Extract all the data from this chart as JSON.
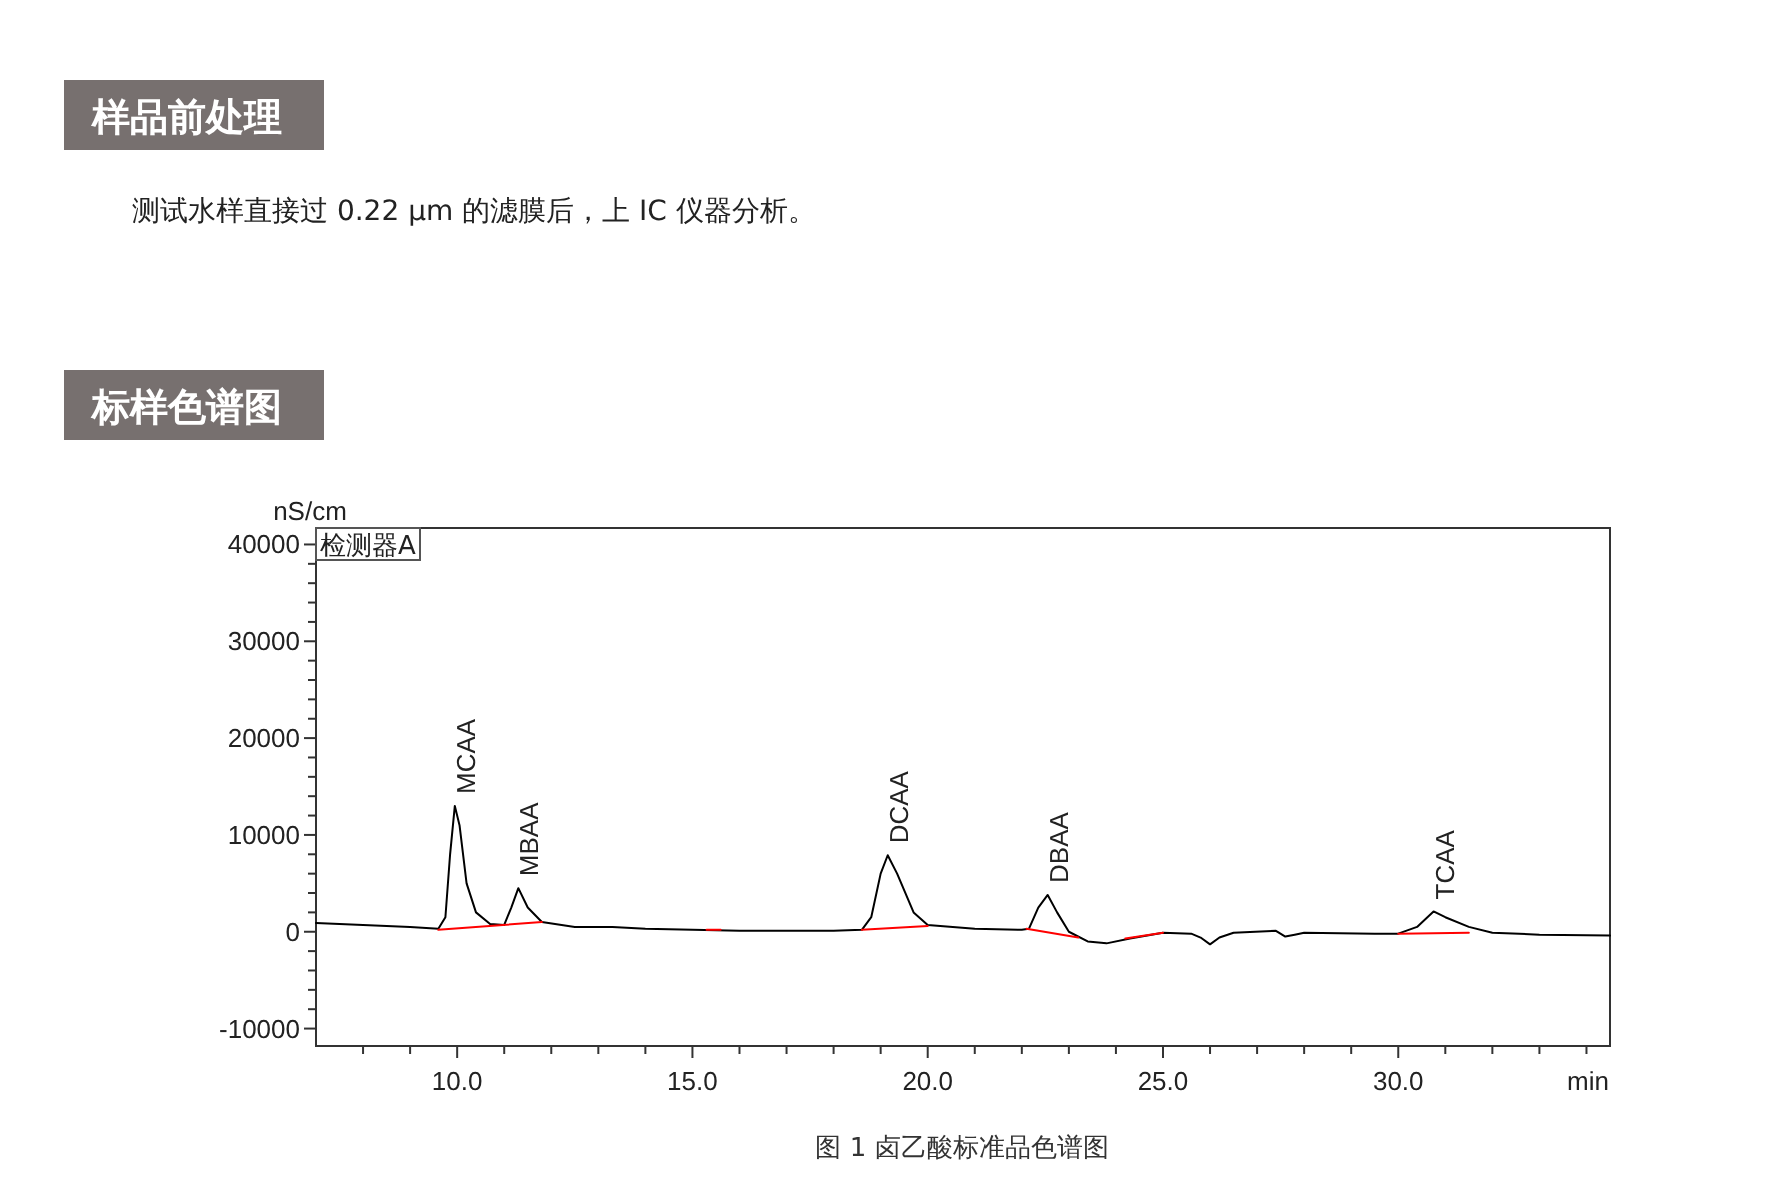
{
  "chart_data": {
    "type": "line",
    "title": "标样色谱图",
    "xlabel": "min",
    "ylabel": "nS/cm",
    "annotations": [
      "样品前处理",
      "测试水样直接过 0.22 µm 的滤膜后，上 IC 仪器分析。",
      "检测器A",
      "图 1 卤乙酸标准品色谱图",
      {
        "text": "MCAA",
        "x": 9.95,
        "y": 13000
      },
      {
        "text": "MBAA",
        "x": 11.3,
        "y": 4500
      },
      {
        "text": "DCAA",
        "x": 19.15,
        "y": 7900
      },
      {
        "text": "DBAA",
        "x": 22.55,
        "y": 3800
      },
      {
        "text": "TCAA",
        "x": 30.75,
        "y": 2100
      }
    ],
    "xlim": [
      7,
      34.5
    ],
    "ylim": [
      -11800,
      41700
    ],
    "xticks": [
      {
        "value": 8,
        "label": null
      },
      {
        "value": 9,
        "label": null
      },
      {
        "value": 10,
        "label": "10.0"
      },
      {
        "value": 11,
        "label": null
      },
      {
        "value": 12,
        "label": null
      },
      {
        "value": 13,
        "label": null
      },
      {
        "value": 14,
        "label": null
      },
      {
        "value": 15,
        "label": "15.0"
      },
      {
        "value": 16,
        "label": null
      },
      {
        "value": 17,
        "label": null
      },
      {
        "value": 18,
        "label": null
      },
      {
        "value": 19,
        "label": null
      },
      {
        "value": 20,
        "label": "20.0"
      },
      {
        "value": 21,
        "label": null
      },
      {
        "value": 22,
        "label": null
      },
      {
        "value": 23,
        "label": null
      },
      {
        "value": 24,
        "label": null
      },
      {
        "value": 25,
        "label": "25.0"
      },
      {
        "value": 26,
        "label": null
      },
      {
        "value": 27,
        "label": null
      },
      {
        "value": 28,
        "label": null
      },
      {
        "value": 29,
        "label": null
      },
      {
        "value": 30,
        "label": "30.0"
      },
      {
        "value": 31,
        "label": null
      },
      {
        "value": 32,
        "label": null
      },
      {
        "value": 33,
        "label": null
      },
      {
        "value": 34,
        "label": null
      }
    ],
    "yticks": [
      -10000,
      {
        "value": -8000,
        "label": null
      },
      {
        "value": -6000,
        "label": null
      },
      {
        "value": -4000,
        "label": null
      },
      {
        "value": -2000,
        "label": null
      },
      0,
      {
        "value": 2000,
        "label": null
      },
      {
        "value": 4000,
        "label": null
      },
      {
        "value": 6000,
        "label": null
      },
      {
        "value": 8000,
        "label": null
      },
      10000,
      {
        "value": 12000,
        "label": null
      },
      {
        "value": 14000,
        "label": null
      },
      {
        "value": 16000,
        "label": null
      },
      {
        "value": 18000,
        "label": null
      },
      20000,
      {
        "value": 22000,
        "label": null
      },
      {
        "value": 24000,
        "label": null
      },
      {
        "value": 26000,
        "label": null
      },
      {
        "value": 28000,
        "label": null
      },
      30000,
      {
        "value": 32000,
        "label": null
      },
      {
        "value": 34000,
        "label": null
      },
      {
        "value": 36000,
        "label": null
      },
      {
        "value": 38000,
        "label": null
      },
      40000
    ],
    "marker": "none",
    "series": [
      {
        "color": "#000000",
        "x": [
          7.0,
          8.0,
          9.0,
          9.6,
          9.75,
          9.85,
          9.95,
          10.05,
          10.2,
          10.4,
          10.7,
          11.0,
          11.15,
          11.3,
          11.5,
          11.8,
          12.5,
          13.3,
          14.0,
          15.0,
          16.0,
          17.0,
          18.0,
          18.6,
          18.8,
          19.0,
          19.15,
          19.35,
          19.7,
          20.0,
          21.0,
          22.0,
          22.15,
          22.35,
          22.55,
          22.75,
          23.0,
          23.4,
          23.8,
          24.3,
          25.0,
          25.6,
          25.8,
          26.0,
          26.2,
          26.5,
          27.4,
          27.6,
          27.8,
          28.0,
          29.5,
          30.0,
          30.4,
          30.75,
          31.0,
          31.5,
          32.0,
          33.0,
          34.5
        ],
        "values": [
          900,
          700,
          500,
          300,
          1500,
          8000,
          13000,
          11000,
          5000,
          2000,
          800,
          700,
          2500,
          4500,
          2500,
          1000,
          500,
          500,
          300,
          200,
          100,
          100,
          100,
          200,
          1500,
          6000,
          7900,
          6000,
          2000,
          700,
          300,
          200,
          300,
          2500,
          3800,
          2000,
          0,
          -1000,
          -1200,
          -700,
          -100,
          -200,
          -600,
          -1300,
          -600,
          -100,
          100,
          -500,
          -300,
          -100,
          -200,
          -200,
          500,
          2100,
          1500,
          500,
          -100,
          -300,
          -400
        ]
      },
      {
        "color": "#ff0000",
        "x": [
          9.6,
          11.8
        ],
        "values": [
          200,
          1000
        ]
      },
      {
        "color": "#ff0000",
        "x": [
          15.3,
          15.6
        ],
        "values": [
          200,
          200
        ]
      },
      {
        "color": "#ff0000",
        "x": [
          18.6,
          20.0
        ],
        "values": [
          200,
          600
        ]
      },
      {
        "color": "#ff0000",
        "x": [
          22.1,
          23.2
        ],
        "values": [
          300,
          -600
        ]
      },
      {
        "color": "#ff0000",
        "x": [
          24.2,
          25.0
        ],
        "values": [
          -700,
          -100
        ]
      },
      {
        "color": "#ff0000",
        "x": [
          30.0,
          31.5
        ],
        "values": [
          -200,
          -100
        ]
      }
    ]
  }
}
